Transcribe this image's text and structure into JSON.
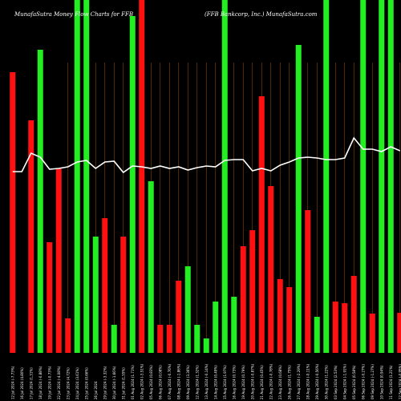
{
  "header": {
    "left": "MunafaSutra  Money Flow  Charts for FFB",
    "right": "(FFB Bankcorp,  Inc.) MunafaSutra.com"
  },
  "chart_data": {
    "type": "bar",
    "ylim": [
      0,
      440
    ],
    "colors": {
      "up": "#22ee22",
      "down": "#ff1111",
      "line": "#ffffff",
      "grid": "#8a4a0a",
      "background": "#000000"
    },
    "categories": [
      "12 Jul 2024 (-7.73%)",
      "16 Jul 2024 (4.80%)",
      "17 Jul 2024 (1.31%)",
      "18 Jul 2024 (-0.88%)",
      "19 Jul 2024 (-0.73%)",
      "22 Jul 2024 (-4.08%)",
      "23 Jul 2024 (4.72%)",
      "24 Jul 2024 (3.61%)",
      "25 Jul 2024 (0.66%)",
      "26 Jul 2024",
      "29 Jul 2024 (-3.32%)",
      "30 Jul 2024 (-1.66%)",
      "31 Jul 2024 (1.55%)",
      "01 Aug 2024 (1.71%)",
      "02 Aug 2024 (-3.51%)",
      "05 Aug 2024 (0.83%)",
      "06 Aug 2024 (0.08%)",
      "07 Aug 2024 (-0.76%)",
      "08 Aug 2024 (-1.86%)",
      "09 Aug 2024 (3.36%)",
      "12 Aug 2024 (1.32%)",
      "13 Aug 2024 (-0.14%)",
      "14 Aug 2024 (0.49%)",
      "15 Aug 2024 (1.97%)",
      "16 Aug 2024 (0.73%)",
      "19 Aug 2024 (0.79%)",
      "20 Aug 2024 (-0.87%)",
      "21 Aug 2024 (0.45%)",
      "22 Aug 2024 (-0.78%)",
      "23 Aug 2024 (0.68%)",
      "26 Aug 2024 (1.75%)",
      "27 Aug 2024 (-2.29%)",
      "28 Aug 2024 (-0.11%)",
      "29 Aug 2024 (-0.56%)",
      "30 Aug 2024 (1.22%)",
      "03 Sep 2024 (2.53%)",
      "04 Sep 2024 (-1.91%)",
      "05 Sep 2024 (0.58%)",
      "06 Sep 2024 (-0.27%)",
      "09 Sep 2024 (-1.27%)",
      "10 Sep 2024 (0.94%)",
      "11 Sep 2024 (1.21%)",
      "12 Sep 2024 (-0.95%)"
    ],
    "values": [
      350,
      0,
      290,
      378,
      138,
      230,
      43,
      440,
      440,
      145,
      168,
      35,
      145,
      420,
      440,
      214,
      35,
      35,
      90,
      108,
      35,
      18,
      64,
      440,
      70,
      133,
      153,
      320,
      208,
      92,
      82,
      384,
      178,
      45,
      440,
      64,
      62,
      96,
      440,
      49,
      440,
      440,
      50
    ],
    "directions": [
      "down",
      "down",
      "down",
      "up",
      "down",
      "down",
      "down",
      "up",
      "up",
      "up",
      "down",
      "up",
      "down",
      "up",
      "down",
      "up",
      "down",
      "down",
      "down",
      "up",
      "up",
      "up",
      "up",
      "up",
      "up",
      "down",
      "down",
      "down",
      "down",
      "down",
      "down",
      "up",
      "down",
      "up",
      "up",
      "down",
      "down",
      "down",
      "up",
      "down",
      "up",
      "up",
      "down"
    ],
    "line_values": [
      226,
      226,
      249,
      244,
      229,
      230,
      232,
      238,
      240,
      230,
      238,
      239,
      225,
      233,
      232,
      230,
      233,
      230,
      232,
      228,
      231,
      233,
      232,
      240,
      241,
      241,
      227,
      230,
      227,
      234,
      238,
      243,
      244,
      243,
      241,
      241,
      243,
      268,
      254,
      254,
      251,
      257,
      252
    ]
  }
}
